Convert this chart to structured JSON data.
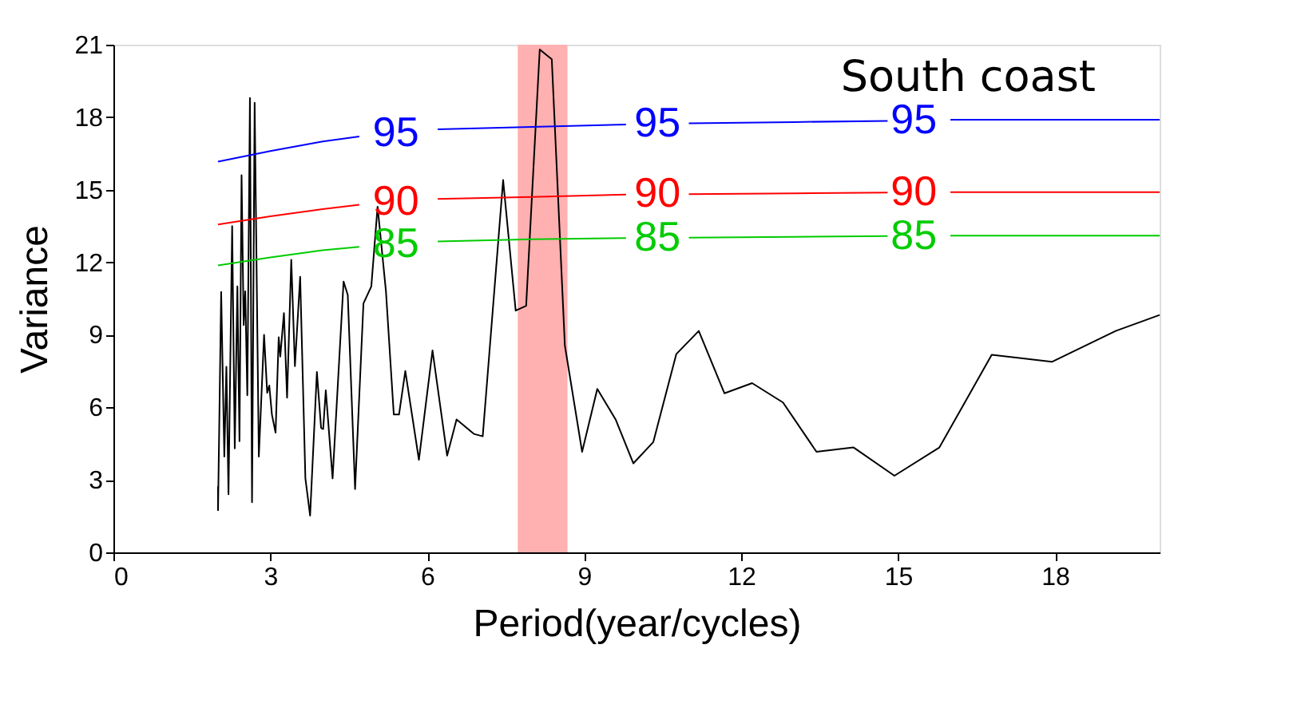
{
  "chart_data": {
    "type": "line",
    "title": "South coast",
    "xlabel": "Period(year/cycles)",
    "ylabel": "Variance",
    "xlim": [
      0,
      20
    ],
    "xticks": [
      0,
      3,
      6,
      9,
      12,
      15,
      18
    ],
    "ylim": [
      0,
      21
    ],
    "yticks": [
      0,
      3,
      6,
      9,
      12,
      15,
      18,
      21
    ],
    "grid": false,
    "bands": [
      {
        "axis": "x",
        "from": 7.73,
        "to": 8.68,
        "color": "#ffb0b0"
      }
    ],
    "series": [
      {
        "color": "#000000",
        "x": [
          2.0,
          2.0,
          2.06,
          2.12,
          2.16,
          2.2,
          2.27,
          2.32,
          2.37,
          2.41,
          2.45,
          2.49,
          2.52,
          2.56,
          2.61,
          2.65,
          2.7,
          2.78,
          2.88,
          2.94,
          2.98,
          3.03,
          3.1,
          3.16,
          3.19,
          3.26,
          3.32,
          3.4,
          3.47,
          3.57,
          3.67,
          3.76,
          3.89,
          3.97,
          4.01,
          4.06,
          4.19,
          4.4,
          4.48,
          4.62,
          4.78,
          4.93,
          5.05,
          5.21,
          5.36,
          5.46,
          5.58,
          5.84,
          6.1,
          6.38,
          6.56,
          6.89,
          7.06,
          7.45,
          7.69,
          7.89,
          8.15,
          8.38,
          8.63,
          8.96,
          9.25,
          9.6,
          9.94,
          10.32,
          10.76,
          11.19,
          11.68,
          12.21,
          12.8,
          13.44,
          14.15,
          14.93,
          15.79,
          16.79,
          17.94,
          19.16,
          20.0
        ],
        "values": [
          2.73,
          1.74,
          10.77,
          3.96,
          7.68,
          2.4,
          13.5,
          4.3,
          11.0,
          4.6,
          15.6,
          9.4,
          10.8,
          6.5,
          18.8,
          2.07,
          18.6,
          3.96,
          9.0,
          6.6,
          6.9,
          5.7,
          4.95,
          8.9,
          8.1,
          9.9,
          6.4,
          12.1,
          7.7,
          11.4,
          3.06,
          1.52,
          7.46,
          5.15,
          5.1,
          6.7,
          3.06,
          11.2,
          10.65,
          2.62,
          10.3,
          11.0,
          14.3,
          10.8,
          5.7,
          5.7,
          7.5,
          3.83,
          8.35,
          4.0,
          5.5,
          4.9,
          4.8,
          15.4,
          10.0,
          10.2,
          20.8,
          20.4,
          8.56,
          4.16,
          6.76,
          5.5,
          3.68,
          4.56,
          8.2,
          9.16,
          6.58,
          7.0,
          6.2,
          4.16,
          4.34,
          3.17,
          4.34,
          8.17,
          7.88,
          9.16,
          9.82
        ]
      },
      {
        "name": "95",
        "color": "#0000ff",
        "x": [
          2,
          3,
          4,
          4.7,
          5.4,
          6.2,
          8,
          9.8,
          10.4,
          11,
          13,
          14.8,
          15.3,
          16,
          18,
          20
        ],
        "values": [
          16.16,
          16.6,
          17.0,
          17.2,
          null,
          17.5,
          17.6,
          17.7,
          null,
          17.75,
          17.8,
          17.85,
          null,
          17.9,
          17.9,
          17.9
        ]
      },
      {
        "name": "90",
        "color": "#ff0000",
        "x": [
          2,
          3,
          4,
          4.7,
          5.4,
          6.2,
          8,
          9.8,
          10.4,
          11,
          13,
          14.8,
          15.3,
          16,
          18,
          20
        ],
        "values": [
          13.56,
          13.9,
          14.2,
          14.38,
          null,
          14.62,
          14.7,
          14.8,
          null,
          14.82,
          14.85,
          14.88,
          null,
          14.9,
          14.9,
          14.9
        ]
      },
      {
        "name": "85",
        "color": "#00cc00",
        "x": [
          2,
          3,
          4,
          4.7,
          5.4,
          6.2,
          8,
          9.8,
          10.4,
          11,
          13,
          14.8,
          15.3,
          16,
          18,
          20
        ],
        "values": [
          11.87,
          12.2,
          12.5,
          12.64,
          null,
          12.86,
          12.95,
          13.0,
          null,
          13.02,
          13.05,
          13.08,
          null,
          13.1,
          13.1,
          13.1
        ]
      }
    ]
  }
}
